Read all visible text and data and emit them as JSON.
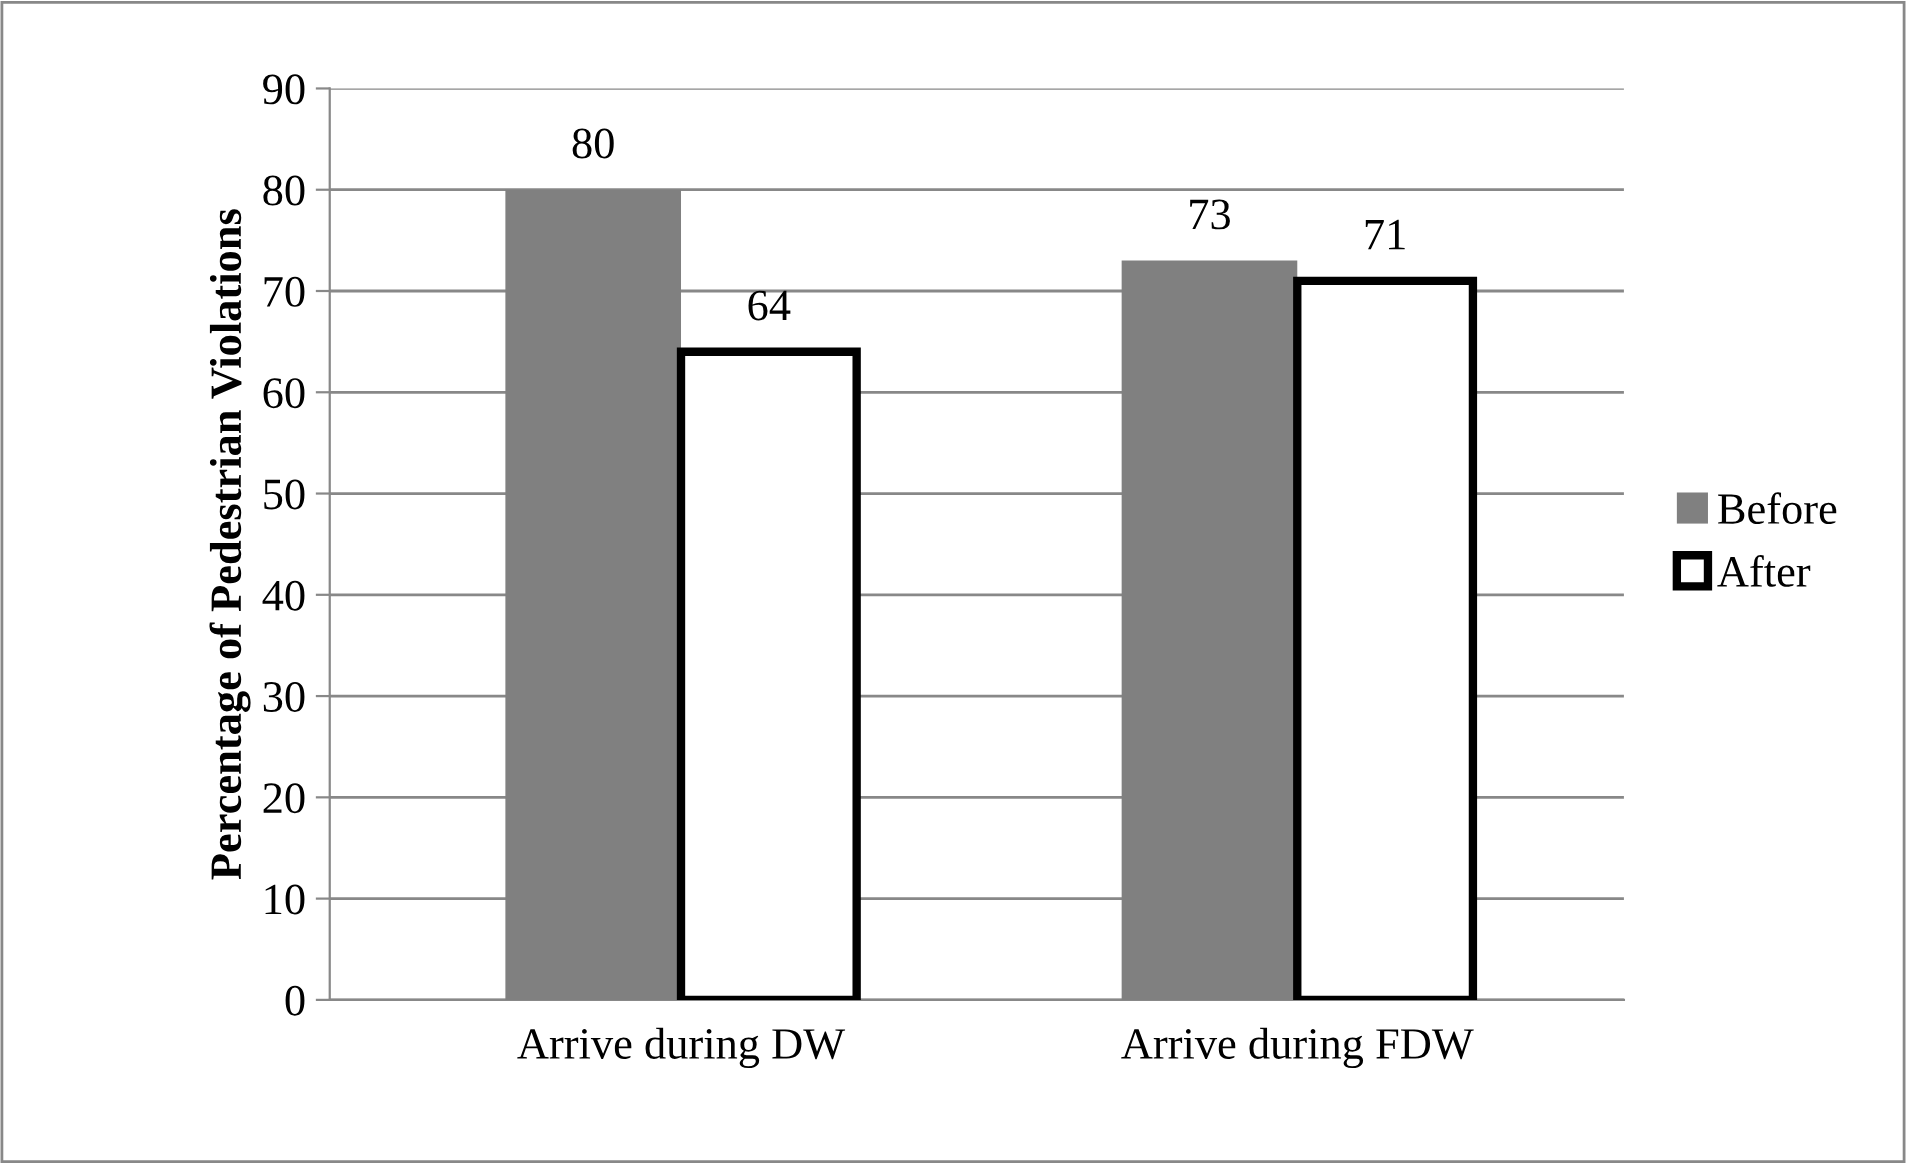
{
  "chart_data": {
    "type": "bar",
    "ylabel": "Percentage of Pedestrian Violations",
    "categories": [
      "Arrive during DW",
      "Arrive during FDW"
    ],
    "series": [
      {
        "name": "Before",
        "color": "#808080",
        "values": [
          80,
          73
        ]
      },
      {
        "name": "After",
        "color": "#ffffff",
        "values": [
          64,
          71
        ]
      }
    ],
    "ylim": [
      0,
      90
    ],
    "yticks": [
      0,
      10,
      20,
      30,
      40,
      50,
      60,
      70,
      80,
      90
    ],
    "grid": "y",
    "legend": "right",
    "data_labels": true
  }
}
